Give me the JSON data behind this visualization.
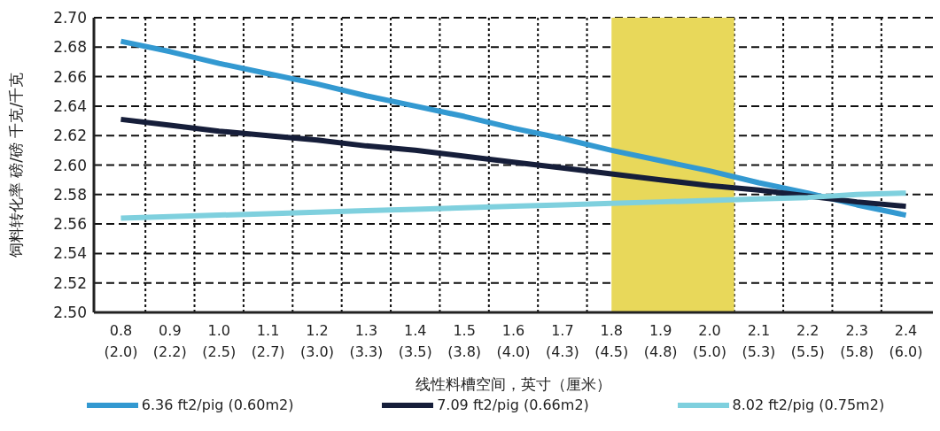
{
  "chart_data": {
    "type": "line",
    "xlabel": "线性料槽空间，英寸（厘米）",
    "ylabel": "饲料转化率 磅/磅 千克/千克",
    "categories": [
      "0.8\n(2.0)",
      "0.9\n(2.2)",
      "1.0\n(2.5)",
      "1.1\n(2.7)",
      "1.2\n(3.0)",
      "1.3\n(3.3)",
      "1.4\n(3.5)",
      "1.5\n(3.8)",
      "1.6\n(4.0)",
      "1.7\n(4.3)",
      "1.8\n(4.5)",
      "1.9\n(4.8)",
      "2.0\n(5.0)",
      "2.1\n(5.3)",
      "2.2\n(5.5)",
      "2.3\n(5.8)",
      "2.4\n(6.0)"
    ],
    "series": [
      {
        "name": "6.36 ft2/pig (0.60m2)",
        "color": "#3399d1",
        "values": [
          2.684,
          2.677,
          2.669,
          2.662,
          2.655,
          2.647,
          2.64,
          2.633,
          2.625,
          2.618,
          2.61,
          2.603,
          2.596,
          2.588,
          2.581,
          2.573,
          2.566
        ]
      },
      {
        "name": "7.09 ft2/pig (0.66m2)",
        "color": "#161e3a",
        "values": [
          2.631,
          2.627,
          2.623,
          2.62,
          2.617,
          2.613,
          2.61,
          2.606,
          2.602,
          2.598,
          2.594,
          2.59,
          2.586,
          2.583,
          2.579,
          2.575,
          2.572
        ]
      },
      {
        "name": "8.02 ft2/pig (0.75m2)",
        "color": "#7fd0de",
        "values": [
          2.564,
          2.565,
          2.566,
          2.567,
          2.568,
          2.569,
          2.57,
          2.571,
          2.572,
          2.573,
          2.574,
          2.575,
          2.576,
          2.577,
          2.578,
          2.58,
          2.581
        ]
      }
    ],
    "ylim": [
      2.5,
      2.7
    ],
    "yticks": [
      {
        "value": 2.5,
        "label": "2.50"
      },
      {
        "value": 2.52,
        "label": "2.52"
      },
      {
        "value": 2.54,
        "label": "2.54"
      },
      {
        "value": 2.56,
        "label": "2.56"
      },
      {
        "value": 2.58,
        "label": "2.58"
      },
      {
        "value": 2.6,
        "label": "2.60"
      },
      {
        "value": 2.62,
        "label": "2.62"
      },
      {
        "value": 2.64,
        "label": "2.64"
      },
      {
        "value": 2.66,
        "label": "2.66"
      },
      {
        "value": 2.68,
        "label": "2.68"
      },
      {
        "value": 2.7,
        "label": "2.70"
      }
    ],
    "bands": [
      {
        "axis": "x",
        "from": "1.8\n(4.5)",
        "to": "2.0\n(5.0)",
        "color": "#e8d85a"
      }
    ],
    "grid": true,
    "legend": "bottom",
    "marker": "none",
    "line_style": "solid"
  }
}
